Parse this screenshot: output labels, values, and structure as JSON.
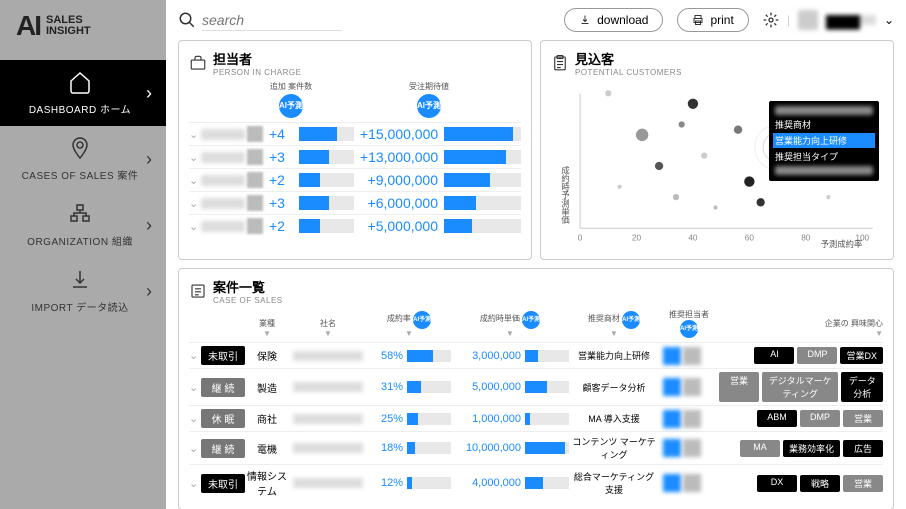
{
  "logo": {
    "ai": "AI",
    "line1": "SALES",
    "line2": "INSIGHT"
  },
  "sidebar": {
    "items": [
      {
        "label": "DASHBOARD ホーム"
      },
      {
        "label": "CASES OF SALES 案件"
      },
      {
        "label": "ORGANIZATION 組織"
      },
      {
        "label": "IMPORT データ読込"
      }
    ]
  },
  "topbar": {
    "search_placeholder": "search",
    "download": "download",
    "print": "print",
    "user_name": "████"
  },
  "person_panel": {
    "title": "担当者",
    "sub": "PERSON IN CHARGE",
    "col1_label": "追加\n案件数",
    "col2_label": "受注期待値",
    "ai_label": "AI予測",
    "rows": [
      {
        "add": "+4",
        "bar1": 70,
        "val": "+15,000,000",
        "bar2": 90
      },
      {
        "add": "+3",
        "bar1": 55,
        "val": "+13,000,000",
        "bar2": 80
      },
      {
        "add": "+2",
        "bar1": 38,
        "val": "+9,000,000",
        "bar2": 60
      },
      {
        "add": "+3",
        "bar1": 55,
        "val": "+6,000,000",
        "bar2": 42
      },
      {
        "add": "+2",
        "bar1": 38,
        "val": "+5,000,000",
        "bar2": 36
      }
    ]
  },
  "potential_panel": {
    "title": "見込客",
    "sub": "POTENTIAL CUSTOMERS",
    "ylabel": "成約時予測単価",
    "xlabel": "予測成約率",
    "xticks": [
      0,
      20,
      40,
      60,
      80,
      100
    ],
    "points": [
      {
        "x": 10,
        "y": 130,
        "r": 3,
        "c": "#ccc"
      },
      {
        "x": 14,
        "y": 40,
        "r": 2,
        "c": "#ccc"
      },
      {
        "x": 22,
        "y": 90,
        "r": 6,
        "c": "#999"
      },
      {
        "x": 28,
        "y": 60,
        "r": 4,
        "c": "#555"
      },
      {
        "x": 34,
        "y": 30,
        "r": 3,
        "c": "#bbb"
      },
      {
        "x": 40,
        "y": 120,
        "r": 5,
        "c": "#333"
      },
      {
        "x": 44,
        "y": 70,
        "r": 3,
        "c": "#ccc"
      },
      {
        "x": 56,
        "y": 95,
        "r": 4,
        "c": "#777"
      },
      {
        "x": 60,
        "y": 45,
        "r": 5,
        "c": "#222"
      },
      {
        "x": 64,
        "y": 25,
        "r": 4,
        "c": "#333"
      },
      {
        "x": 70,
        "y": 78,
        "r": 4,
        "c": "#1a8cff"
      },
      {
        "x": 80,
        "y": 55,
        "r": 3,
        "c": "#999"
      },
      {
        "x": 88,
        "y": 30,
        "r": 2,
        "c": "#ccc"
      },
      {
        "x": 48,
        "y": 20,
        "r": 2,
        "c": "#bbb"
      },
      {
        "x": 36,
        "y": 100,
        "r": 3,
        "c": "#888"
      }
    ],
    "tooltip": {
      "line1": "推奨商材",
      "highlight": "営業能力向上研修",
      "line3": "推奨担当タイプ",
      "line4": "████"
    }
  },
  "case_panel": {
    "title": "案件一覧",
    "sub": "CASE OF SALES",
    "headers": {
      "type": "業種",
      "company": "社名",
      "pct": "成約率",
      "unit": "成約時単価",
      "prod": "推奨商材",
      "owner": "推奨担当者",
      "interest": "企業の\n興味関心"
    },
    "ai_label": "AI予測",
    "rows": [
      {
        "status": "未取引",
        "status_cls": "black",
        "type": "保険",
        "pct": "58%",
        "bar1": 58,
        "amount": "3,000,000",
        "bar2": 30,
        "desc": "営業能力向上研修",
        "tags": [
          {
            "t": "AI",
            "c": "black"
          },
          {
            "t": "DMP",
            "c": "gray"
          },
          {
            "t": "営業DX",
            "c": "black"
          }
        ]
      },
      {
        "status": "継 続",
        "status_cls": "gray",
        "type": "製造",
        "pct": "31%",
        "bar1": 31,
        "amount": "5,000,000",
        "bar2": 50,
        "desc": "顧客データ分析",
        "tags": [
          {
            "t": "営業",
            "c": "gray"
          },
          {
            "t": "デジタルマーケティング",
            "c": "gray"
          },
          {
            "t": "データ分析",
            "c": "black"
          }
        ]
      },
      {
        "status": "休 眠",
        "status_cls": "gray",
        "type": "商社",
        "pct": "25%",
        "bar1": 25,
        "amount": "1,000,000",
        "bar2": 12,
        "desc": "MA 導入支援",
        "tags": [
          {
            "t": "ABM",
            "c": "black"
          },
          {
            "t": "DMP",
            "c": "gray"
          },
          {
            "t": "営業",
            "c": "gray"
          }
        ]
      },
      {
        "status": "継 続",
        "status_cls": "gray",
        "type": "電機",
        "pct": "18%",
        "bar1": 18,
        "amount": "10,000,000",
        "bar2": 90,
        "desc": "コンテンツ\nマーケティング",
        "tags": [
          {
            "t": "MA",
            "c": "gray"
          },
          {
            "t": "業務効率化",
            "c": "black"
          },
          {
            "t": "広告",
            "c": "black"
          }
        ]
      },
      {
        "status": "未取引",
        "status_cls": "black",
        "type": "情報システム",
        "pct": "12%",
        "bar1": 12,
        "amount": "4,000,000",
        "bar2": 40,
        "desc": "総合マーケティング\n支援",
        "tags": [
          {
            "t": "DX",
            "c": "black"
          },
          {
            "t": "戦略",
            "c": "black"
          },
          {
            "t": "営業",
            "c": "gray"
          }
        ]
      }
    ]
  },
  "colors": {
    "accent": "#1a8cff",
    "black": "#000",
    "gray": "#888"
  }
}
